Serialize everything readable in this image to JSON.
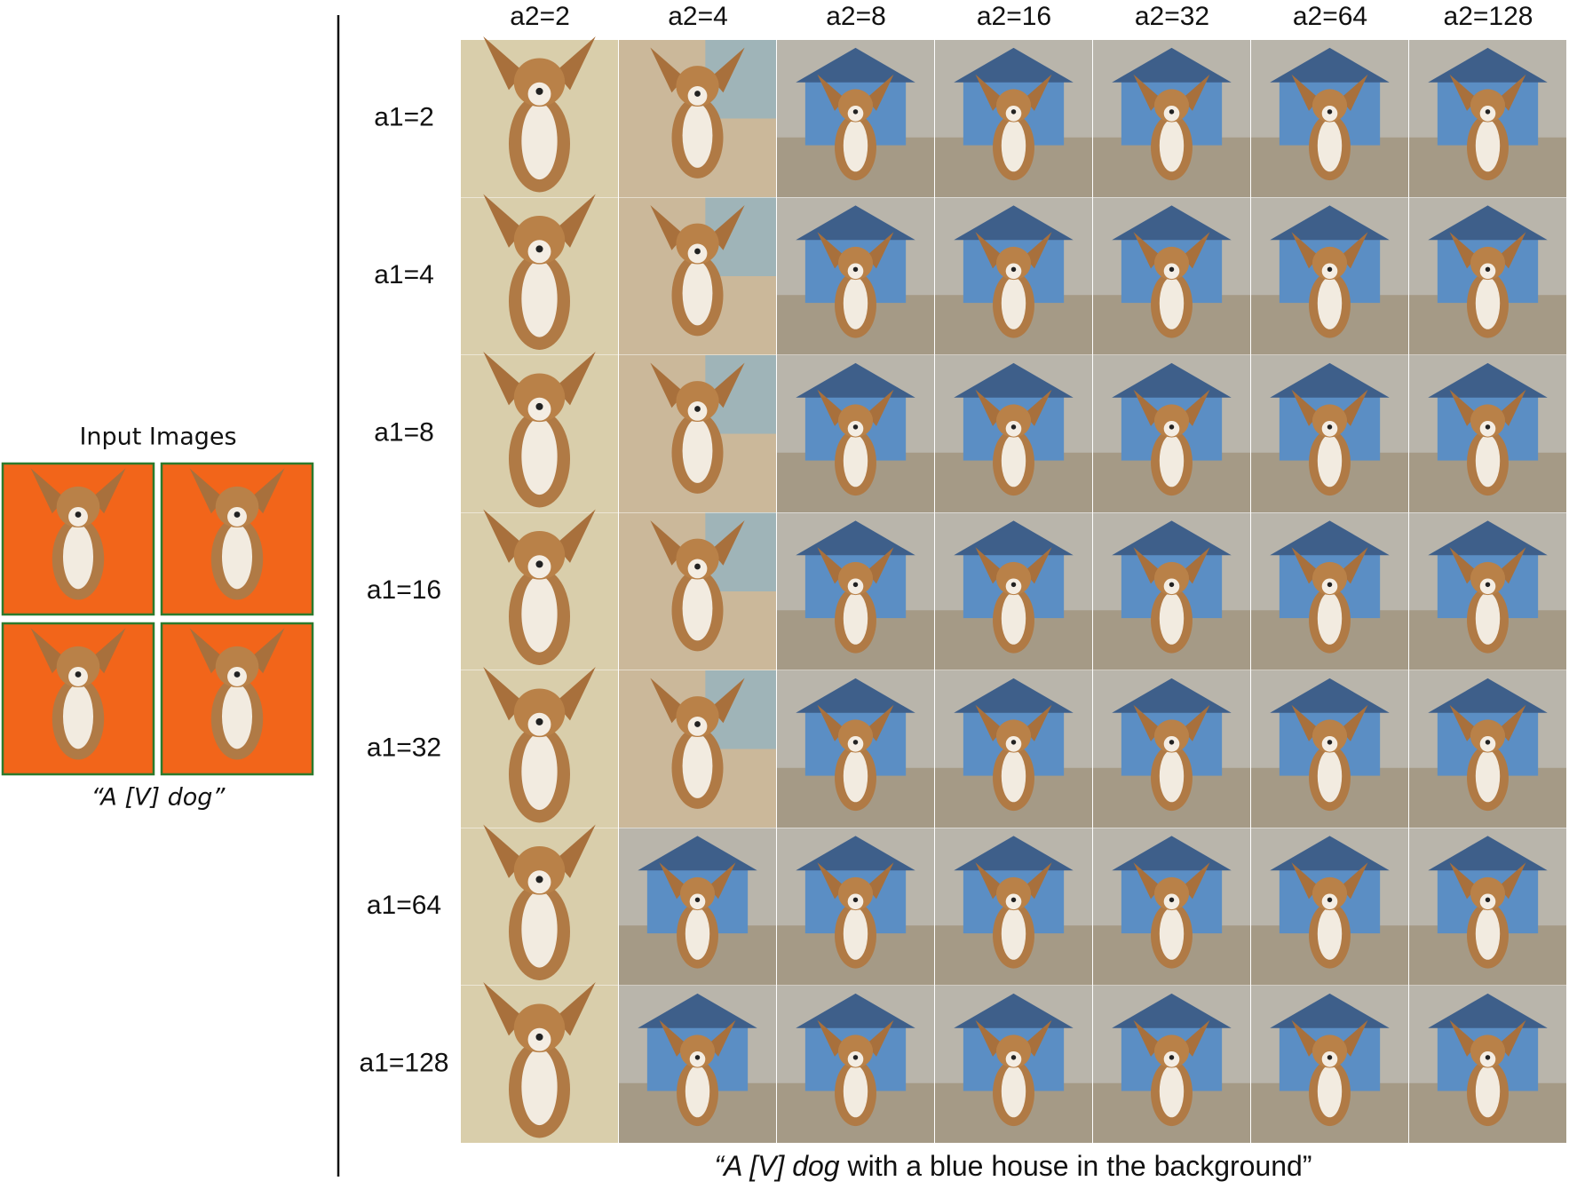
{
  "left_panel": {
    "title": "Input Images",
    "caption": "“A [V] dog”"
  },
  "grid": {
    "column_labels": [
      "a2=2",
      "a2=4",
      "a2=8",
      "a2=16",
      "a2=32",
      "a2=64",
      "a2=128"
    ],
    "row_labels": [
      "a1=2",
      "a1=4",
      "a1=8",
      "a1=16",
      "a1=32",
      "a1=64",
      "a1=128"
    ],
    "caption": {
      "italic": "“A [V] dog",
      "rest": " with a blue house in the background”"
    }
  }
}
